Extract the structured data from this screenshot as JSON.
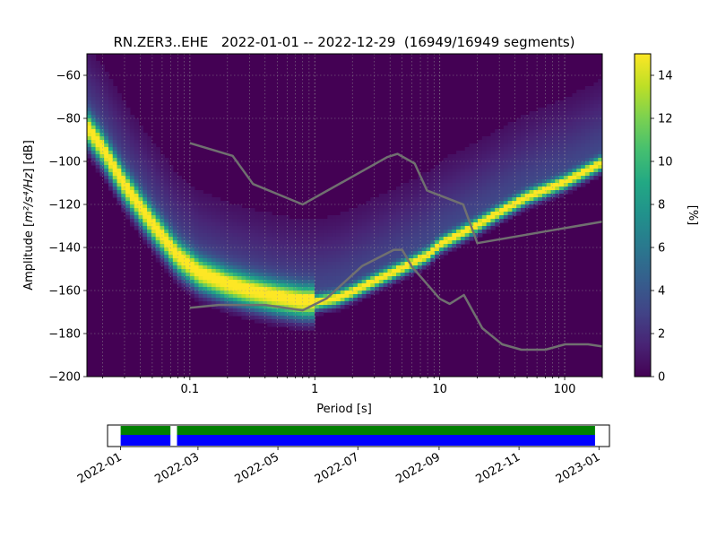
{
  "chart_data": {
    "type": "heatmap",
    "title": "RN.ZER3..EHE   2022-01-01 -- 2022-12-29  (16949/16949 segments)",
    "xlabel": "Period [s]",
    "ylabel_prefix": "Amplitude [",
    "ylabel_unit": "m²/s⁴/Hz",
    "ylabel_suffix": "] [dB]",
    "x_scale": "log",
    "xlim": [
      0.015,
      200
    ],
    "ylim": [
      -200,
      -50
    ],
    "x_ticks": [
      {
        "value": 0.1,
        "label": "0.1"
      },
      {
        "value": 1,
        "label": "1"
      },
      {
        "value": 10,
        "label": "10"
      },
      {
        "value": 100,
        "label": "100"
      }
    ],
    "y_ticks": [
      -200,
      -180,
      -160,
      -140,
      -120,
      -100,
      -80,
      -60
    ],
    "grid": "on (dotted, log minor)",
    "colorbar": {
      "label": "[%]",
      "range": [
        0,
        15
      ],
      "ticks": [
        0,
        2,
        4,
        6,
        8,
        10,
        12,
        14
      ],
      "colormap": "viridis"
    },
    "mode_curve": {
      "name": "mode",
      "points": [
        [
          0.015,
          -85
        ],
        [
          0.02,
          -95
        ],
        [
          0.03,
          -112
        ],
        [
          0.05,
          -130
        ],
        [
          0.08,
          -145
        ],
        [
          0.12,
          -153
        ],
        [
          0.2,
          -158
        ],
        [
          0.3,
          -161
        ],
        [
          0.5,
          -164
        ],
        [
          0.8,
          -166
        ],
        [
          1.0,
          -166
        ],
        [
          1.5,
          -164
        ],
        [
          2,
          -161
        ],
        [
          3,
          -156
        ],
        [
          5,
          -150
        ],
        [
          8,
          -144
        ],
        [
          10,
          -139
        ],
        [
          20,
          -130
        ],
        [
          30,
          -124
        ],
        [
          50,
          -117
        ],
        [
          100,
          -110
        ],
        [
          200,
          -101
        ]
      ]
    },
    "noise_models": [
      {
        "name": "NHNM",
        "points": [
          [
            0.1,
            -91.5
          ],
          [
            0.22,
            -97.4
          ],
          [
            0.32,
            -110.5
          ],
          [
            0.8,
            -120
          ],
          [
            3.8,
            -98
          ],
          [
            4.6,
            -96.5
          ],
          [
            6.3,
            -101
          ],
          [
            7.9,
            -113.5
          ],
          [
            15.4,
            -120
          ],
          [
            20,
            -138
          ],
          [
            200,
            -128
          ]
        ]
      },
      {
        "name": "NLNM",
        "points": [
          [
            0.1,
            -168
          ],
          [
            0.17,
            -166.7
          ],
          [
            0.4,
            -166.7
          ],
          [
            0.8,
            -169.2
          ],
          [
            1.24,
            -163.7
          ],
          [
            2.4,
            -148.6
          ],
          [
            4.3,
            -141.1
          ],
          [
            5,
            -141.1
          ],
          [
            6,
            -149
          ],
          [
            10,
            -163.8
          ],
          [
            12,
            -166.2
          ],
          [
            15.6,
            -162.1
          ],
          [
            21.9,
            -177.5
          ],
          [
            31.6,
            -185
          ],
          [
            45,
            -187.5
          ],
          [
            70,
            -187.5
          ],
          [
            101,
            -185
          ],
          [
            154,
            -185
          ],
          [
            200,
            -186
          ]
        ]
      }
    ],
    "timeline": {
      "x_ticks": [
        "2022-01",
        "2022-03",
        "2022-05",
        "2022-07",
        "2022-09",
        "2022-11",
        "2023-01"
      ],
      "xlim": [
        "2021-12-22",
        "2023-01-09"
      ],
      "coverage": [
        {
          "start": "2022-01-01",
          "end": "2022-02-08"
        },
        {
          "start": "2022-02-13",
          "end": "2022-12-29"
        }
      ],
      "colors": {
        "top": "#008000",
        "bottom": "#0000ff"
      }
    }
  },
  "colors": {
    "background_low": "#440154",
    "noise_model_line": "#707070",
    "grid": "#9a9a9a"
  }
}
